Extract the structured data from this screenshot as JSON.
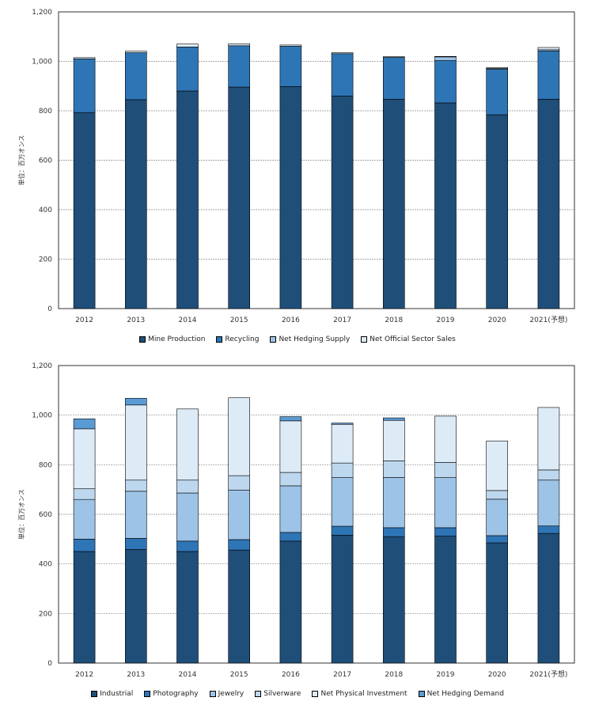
{
  "chart_data": [
    {
      "type": "bar",
      "stacked": true,
      "ylabel": "単位：百万オンス",
      "ylim": [
        0,
        1200
      ],
      "yticks": [
        0,
        200,
        400,
        600,
        800,
        1000,
        1200
      ],
      "ytick_labels": [
        "0",
        "200",
        "400",
        "600",
        "800",
        "1,000",
        "1,200"
      ],
      "grid": true,
      "legend_position": "bottom",
      "categories": [
        "2012",
        "2013",
        "2014",
        "2015",
        "2016",
        "2017",
        "2018",
        "2019",
        "2020",
        "2021(予想)"
      ],
      "series": [
        {
          "name": "Mine Production",
          "color": "#1f4e79",
          "values": [
            793,
            845,
            880,
            896,
            898,
            860,
            847,
            832,
            784,
            847
          ]
        },
        {
          "name": "Recycling",
          "color": "#2e75b6",
          "values": [
            217,
            190,
            178,
            167,
            163,
            171,
            169,
            171,
            184,
            195
          ]
        },
        {
          "name": "Net Hedging Supply",
          "color": "#9dc3e6",
          "values": [
            0,
            0,
            0,
            0,
            0,
            0,
            0,
            15,
            3,
            5
          ]
        },
        {
          "name": "Net Official Sector Sales",
          "color": "#ddebf7",
          "values": [
            5,
            6,
            12,
            8,
            5,
            4,
            3,
            2,
            4,
            9
          ]
        }
      ]
    },
    {
      "type": "bar",
      "stacked": true,
      "ylabel": "単位：百万オンス",
      "ylim": [
        0,
        1200
      ],
      "yticks": [
        0,
        200,
        400,
        600,
        800,
        1000,
        1200
      ],
      "ytick_labels": [
        "0",
        "200",
        "400",
        "600",
        "800",
        "1,000",
        "1,200"
      ],
      "grid": true,
      "legend_position": "bottom",
      "categories": [
        "2012",
        "2013",
        "2014",
        "2015",
        "2016",
        "2017",
        "2018",
        "2019",
        "2020",
        "2021(予想)"
      ],
      "series": [
        {
          "name": "Industrial",
          "color": "#1f4e79",
          "values": [
            450,
            458,
            450,
            456,
            492,
            516,
            510,
            512,
            485,
            523
          ]
        },
        {
          "name": "Photography",
          "color": "#2e75b6",
          "values": [
            50,
            45,
            42,
            42,
            35,
            36,
            36,
            34,
            29,
            30
          ]
        },
        {
          "name": "Jewelry",
          "color": "#9dc3e6",
          "values": [
            160,
            190,
            194,
            200,
            188,
            196,
            203,
            202,
            147,
            185
          ]
        },
        {
          "name": "Silverware",
          "color": "#bdd7ee",
          "values": [
            43,
            45,
            52,
            58,
            54,
            59,
            67,
            61,
            35,
            41
          ]
        },
        {
          "name": "Net Physical Investment",
          "color": "#ddebf7",
          "values": [
            242,
            303,
            287,
            314,
            208,
            156,
            163,
            187,
            200,
            252
          ]
        },
        {
          "name": "Net Hedging Demand",
          "color": "#5b9bd5",
          "values": [
            40,
            27,
            0,
            0,
            17,
            5,
            10,
            0,
            0,
            0
          ]
        }
      ]
    }
  ]
}
